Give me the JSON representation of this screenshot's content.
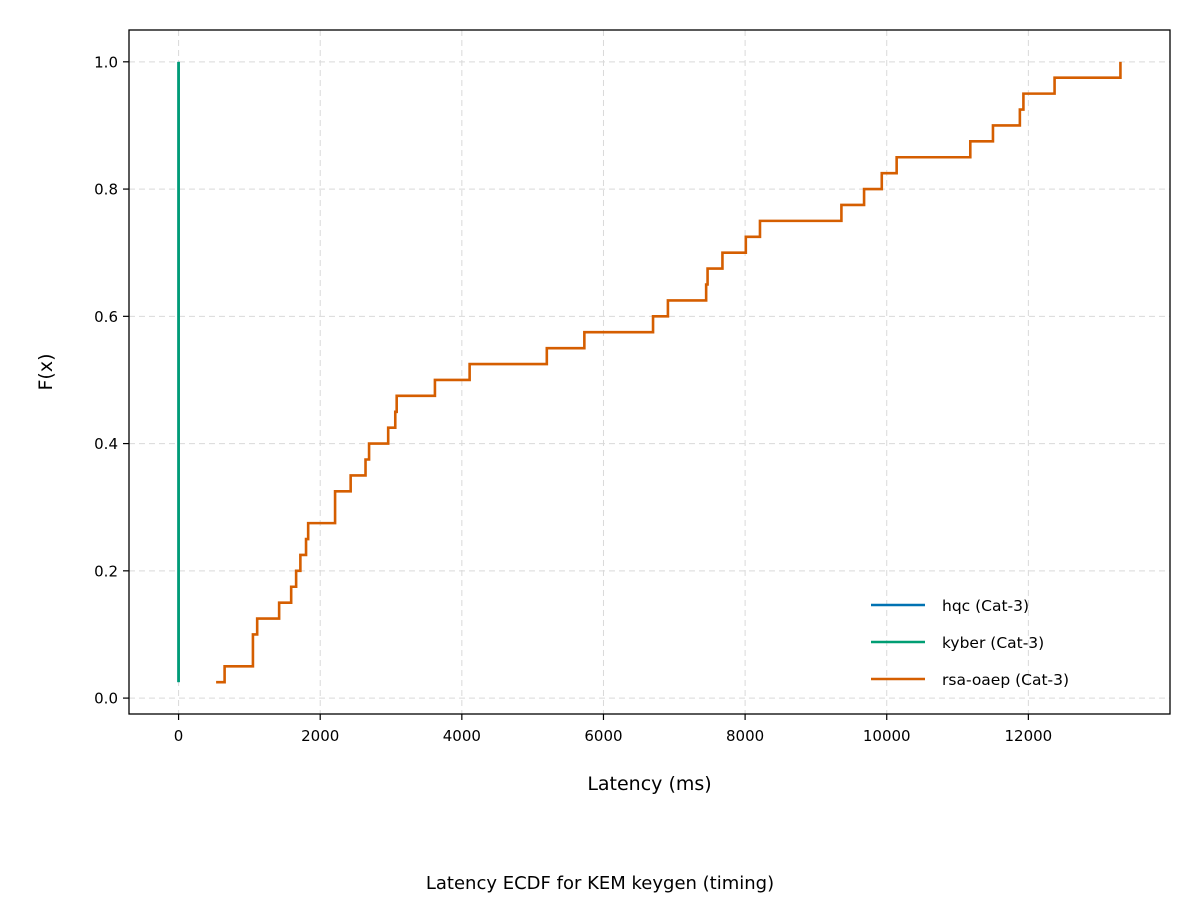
{
  "chart_data": {
    "type": "line",
    "subtype": "ecdf-step",
    "caption": "Latency ECDF for KEM keygen (timing)",
    "xlabel": "Latency (ms)",
    "ylabel": "F(x)",
    "xlim": [
      -700,
      14000
    ],
    "ylim": [
      -0.025,
      1.05
    ],
    "xticks": [
      0,
      2000,
      4000,
      6000,
      8000,
      10000,
      12000
    ],
    "yticks": [
      0.0,
      0.2,
      0.4,
      0.6,
      0.8,
      1.0
    ],
    "xtick_labels": [
      "0",
      "2000",
      "4000",
      "6000",
      "8000",
      "10000",
      "12000"
    ],
    "ytick_labels": [
      "0.0",
      "0.2",
      "0.4",
      "0.6",
      "0.8",
      "1.0"
    ],
    "grid": true,
    "legend_position": "lower right",
    "series": [
      {
        "name": "hqc (Cat-3)",
        "color": "#0072b2",
        "x": [
          0,
          0
        ],
        "y": [
          0.025,
          1.0
        ]
      },
      {
        "name": "kyber (Cat-3)",
        "color": "#009e73",
        "x": [
          0,
          0
        ],
        "y": [
          0.025,
          1.0
        ]
      },
      {
        "name": "rsa-oaep (Cat-3)",
        "color": "#d55e00",
        "x": [
          530,
          650,
          1050,
          1110,
          1420,
          1590,
          1660,
          1720,
          1800,
          1830,
          2210,
          2430,
          2640,
          2690,
          2960,
          3060,
          3080,
          3620,
          4110,
          5200,
          5730,
          6700,
          6910,
          7450,
          7470,
          7680,
          8010,
          8210,
          9360,
          9680,
          9930,
          10140,
          11180,
          11500,
          11880,
          11930,
          12370,
          13300
        ],
        "y": [
          0.025,
          0.05,
          0.1,
          0.125,
          0.15,
          0.175,
          0.2,
          0.225,
          0.25,
          0.275,
          0.325,
          0.35,
          0.375,
          0.4,
          0.425,
          0.45,
          0.475,
          0.5,
          0.525,
          0.55,
          0.575,
          0.6,
          0.625,
          0.65,
          0.675,
          0.7,
          0.725,
          0.75,
          0.775,
          0.8,
          0.825,
          0.85,
          0.875,
          0.9,
          0.925,
          0.95,
          0.975,
          1.0
        ]
      }
    ]
  }
}
